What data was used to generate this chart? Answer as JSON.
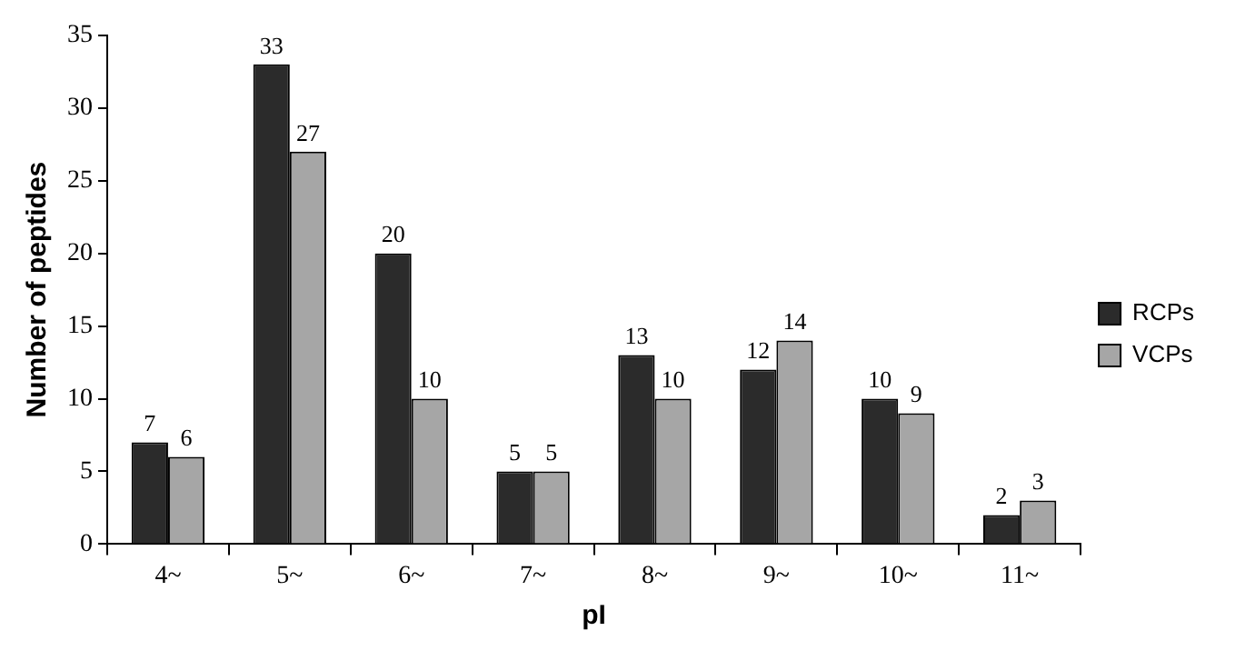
{
  "chart_data": {
    "type": "bar",
    "xlabel": "pI",
    "ylabel": "Number of peptides",
    "categories": [
      "4~",
      "5~",
      "6~",
      "7~",
      "8~",
      "9~",
      "10~",
      "11~"
    ],
    "series": [
      {
        "name": "RCPs",
        "color": "#2b2b2b",
        "values": [
          7,
          33,
          20,
          5,
          13,
          12,
          10,
          2
        ]
      },
      {
        "name": "VCPs",
        "color": "#a6a6a6",
        "values": [
          6,
          27,
          10,
          5,
          10,
          14,
          9,
          3
        ]
      }
    ],
    "ylim": [
      0,
      35
    ],
    "yticks": [
      0,
      5,
      10,
      15,
      20,
      25,
      30,
      35
    ],
    "grid": false,
    "legend": "right",
    "data_labels": true
  }
}
